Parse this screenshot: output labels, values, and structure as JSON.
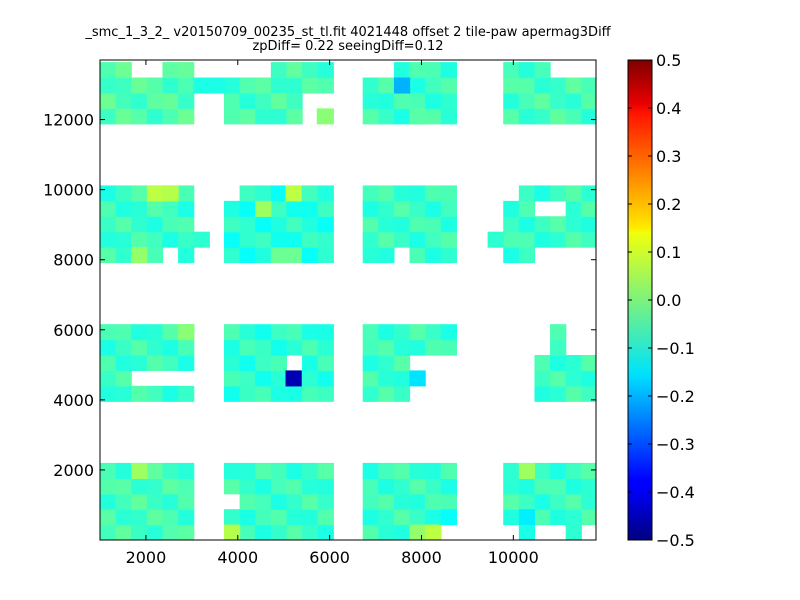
{
  "chart_data": {
    "type": "heatmap",
    "title": "_smc_1_3_2_ v20150709_00235_st_tl.fit 4021448 offset 2 tile-paw apermag3Diff",
    "subtitle": "zpDiff= 0.22 seeingDiff=0.12",
    "xlim": [
      1000,
      11800
    ],
    "ylim": [
      0,
      13700
    ],
    "x_ticks": [
      2000,
      4000,
      6000,
      8000,
      10000
    ],
    "y_ticks": [
      2000,
      4000,
      6000,
      8000,
      10000,
      12000
    ],
    "x_tick_labels": [
      "2000",
      "4000",
      "6000",
      "8000",
      "10000"
    ],
    "y_tick_labels": [
      "2000",
      "4000",
      "6000",
      "8000",
      "10000",
      "12000"
    ],
    "colorbar": {
      "colormap": "jet",
      "vmin": -0.5,
      "vmax": 0.5,
      "ticks": [
        0.5,
        0.4,
        0.3,
        0.2,
        0.1,
        0.0,
        -0.1,
        -0.2,
        -0.3,
        -0.4,
        -0.5
      ],
      "tick_labels": [
        "0.5",
        "0.4",
        "0.3",
        "0.2",
        "0.1",
        "0.0",
        "−0.1",
        "−0.2",
        "−0.3",
        "−0.4",
        "−0.5"
      ]
    },
    "cell_size": [
      340,
      440
    ],
    "blocks": [
      {
        "x": [
          1000,
          3040
        ],
        "y": [
          0,
          2200
        ],
        "base": -0.06
      },
      {
        "x": [
          3700,
          6080
        ],
        "y": [
          0,
          2200
        ],
        "base": -0.07
      },
      {
        "x": [
          6720,
          8760
        ],
        "y": [
          0,
          2200
        ],
        "base": -0.07
      },
      {
        "x": [
          9780,
          11820
        ],
        "y": [
          0,
          2200
        ],
        "base": -0.07
      },
      {
        "x": [
          1000,
          3040
        ],
        "y": [
          3960,
          6160
        ],
        "base": -0.07
      },
      {
        "x": [
          3700,
          6080
        ],
        "y": [
          3960,
          6160
        ],
        "base": -0.08
      },
      {
        "x": [
          6720,
          8760
        ],
        "y": [
          3960,
          6160
        ],
        "base": -0.07
      },
      {
        "x": [
          9780,
          11820
        ],
        "y": [
          3960,
          6160
        ],
        "base": -0.07
      },
      {
        "x": [
          1000,
          3040
        ],
        "y": [
          7920,
          10120
        ],
        "base": -0.07
      },
      {
        "x": [
          3700,
          6080
        ],
        "y": [
          7920,
          10120
        ],
        "base": -0.09
      },
      {
        "x": [
          6720,
          8760
        ],
        "y": [
          7920,
          10120
        ],
        "base": -0.07
      },
      {
        "x": [
          9780,
          11820
        ],
        "y": [
          7920,
          10120
        ],
        "base": -0.07
      },
      {
        "x": [
          1000,
          3040
        ],
        "y": [
          11880,
          13640
        ],
        "base": -0.05
      },
      {
        "x": [
          3700,
          6080
        ],
        "y": [
          11880,
          13640
        ],
        "base": -0.06
      },
      {
        "x": [
          6720,
          8760
        ],
        "y": [
          11880,
          13640
        ],
        "base": -0.07
      },
      {
        "x": [
          9780,
          11820
        ],
        "y": [
          11880,
          13640
        ],
        "base": -0.06
      }
    ],
    "holes": [
      {
        "x": [
          3040,
          3720
        ],
        "y": [
          0,
          1760
        ]
      },
      {
        "x": [
          3700,
          4040
        ],
        "y": [
          880,
          1320
        ]
      },
      {
        "x": [
          8420,
          8760
        ],
        "y": [
          0,
          880
        ]
      },
      {
        "x": [
          9780,
          10120
        ],
        "y": [
          0,
          440
        ]
      },
      {
        "x": [
          10460,
          11140
        ],
        "y": [
          0,
          440
        ]
      },
      {
        "x": [
          11480,
          11820
        ],
        "y": [
          0,
          440
        ]
      },
      {
        "x": [
          3040,
          3720
        ],
        "y": [
          3960,
          6160
        ]
      },
      {
        "x": [
          1680,
          3040
        ],
        "y": [
          4400,
          4840
        ]
      },
      {
        "x": [
          5040,
          5380
        ],
        "y": [
          4840,
          5280
        ]
      },
      {
        "x": [
          7740,
          8760
        ],
        "y": [
          3960,
          5280
        ]
      },
      {
        "x": [
          9780,
          10460
        ],
        "y": [
          3960,
          6160
        ]
      },
      {
        "x": [
          10460,
          10800
        ],
        "y": [
          5280,
          6160
        ]
      },
      {
        "x": [
          11140,
          11820
        ],
        "y": [
          5280,
          6160
        ]
      },
      {
        "x": [
          2360,
          2700
        ],
        "y": [
          7920,
          8360
        ]
      },
      {
        "x": [
          3040,
          3720
        ],
        "y": [
          7920,
          8360
        ]
      },
      {
        "x": [
          3040,
          3720
        ],
        "y": [
          8800,
          10120
        ]
      },
      {
        "x": [
          3700,
          4040
        ],
        "y": [
          9680,
          10120
        ]
      },
      {
        "x": [
          7400,
          7740
        ],
        "y": [
          7920,
          8360
        ]
      },
      {
        "x": [
          8760,
          9420
        ],
        "y": [
          7920,
          10120
        ]
      },
      {
        "x": [
          10460,
          11820
        ],
        "y": [
          7920,
          8360
        ]
      },
      {
        "x": [
          9780,
          10120
        ],
        "y": [
          9680,
          10120
        ]
      },
      {
        "x": [
          10460,
          11140
        ],
        "y": [
          9240,
          9680
        ]
      },
      {
        "x": [
          1680,
          2360
        ],
        "y": [
          13200,
          13640
        ]
      },
      {
        "x": [
          3040,
          3720
        ],
        "y": [
          11880,
          13640
        ]
      },
      {
        "x": [
          3700,
          4720
        ],
        "y": [
          13200,
          13640
        ]
      },
      {
        "x": [
          5380,
          6080
        ],
        "y": [
          11880,
          12760
        ]
      },
      {
        "x": [
          6720,
          7400
        ],
        "y": [
          13200,
          13640
        ]
      },
      {
        "x": [
          8760,
          9420
        ],
        "y": [
          12320,
          13640
        ]
      },
      {
        "x": [
          10800,
          11820
        ],
        "y": [
          13200,
          13640
        ]
      }
    ],
    "extras": [
      {
        "x": [
          3040,
          3380
        ],
        "y": [
          8360,
          8800
        ],
        "value": -0.08
      },
      {
        "x": [
          9440,
          9780
        ],
        "y": [
          8360,
          8800
        ],
        "value": -0.08
      },
      {
        "x": [
          3040,
          3380
        ],
        "y": [
          12760,
          13200
        ],
        "value": -0.1
      },
      {
        "x": [
          3380,
          3720
        ],
        "y": [
          12760,
          13200
        ],
        "value": -0.1
      },
      {
        "x": [
          3700,
          4040
        ],
        "y": [
          0,
          440
        ],
        "value": 0.05
      }
    ],
    "highlights": [
      {
        "x": [
          5040,
          5380
        ],
        "y": [
          4400,
          4840
        ],
        "value": -0.45
      },
      {
        "x": [
          7400,
          7740
        ],
        "y": [
          12760,
          13200
        ],
        "value": -0.2
      },
      {
        "x": [
          7740,
          8080
        ],
        "y": [
          4400,
          4840
        ],
        "value": -0.15
      },
      {
        "x": [
          2700,
          3040
        ],
        "y": [
          5720,
          6160
        ],
        "value": 0.01
      },
      {
        "x": [
          2020,
          2360
        ],
        "y": [
          9680,
          10120
        ],
        "value": 0.06
      },
      {
        "x": [
          2360,
          2700
        ],
        "y": [
          9680,
          10120
        ],
        "value": 0.05
      },
      {
        "x": [
          5040,
          5380
        ],
        "y": [
          9680,
          10120
        ],
        "value": 0.06
      },
      {
        "x": [
          4380,
          4720
        ],
        "y": [
          9240,
          9680
        ],
        "value": 0.03
      },
      {
        "x": [
          1680,
          2020
        ],
        "y": [
          1760,
          2200
        ],
        "value": 0.03
      },
      {
        "x": [
          7740,
          8080
        ],
        "y": [
          0,
          440
        ],
        "value": 0.02
      },
      {
        "x": [
          8080,
          8420
        ],
        "y": [
          0,
          440
        ],
        "value": 0.06
      },
      {
        "x": [
          10120,
          10460
        ],
        "y": [
          1760,
          2200
        ],
        "value": 0.03
      },
      {
        "x": [
          8420,
          8760
        ],
        "y": [
          440,
          880
        ],
        "value": -0.12
      },
      {
        "x": [
          10120,
          10460
        ],
        "y": [
          440,
          880
        ],
        "value": -0.14
      },
      {
        "x": [
          5720,
          6080
        ],
        "y": [
          11880,
          12320
        ],
        "value": 0.01
      },
      {
        "x": [
          1680,
          2020
        ],
        "y": [
          7920,
          8360
        ],
        "value": 0.02
      },
      {
        "x": [
          7740,
          8080
        ],
        "y": [
          11880,
          12320
        ],
        "value": -0.04
      },
      {
        "x": [
          4720,
          5040
        ],
        "y": [
          7920,
          8360
        ],
        "value": -0.02
      },
      {
        "x": [
          5040,
          5380
        ],
        "y": [
          7920,
          8360
        ],
        "value": -0.02
      }
    ]
  }
}
